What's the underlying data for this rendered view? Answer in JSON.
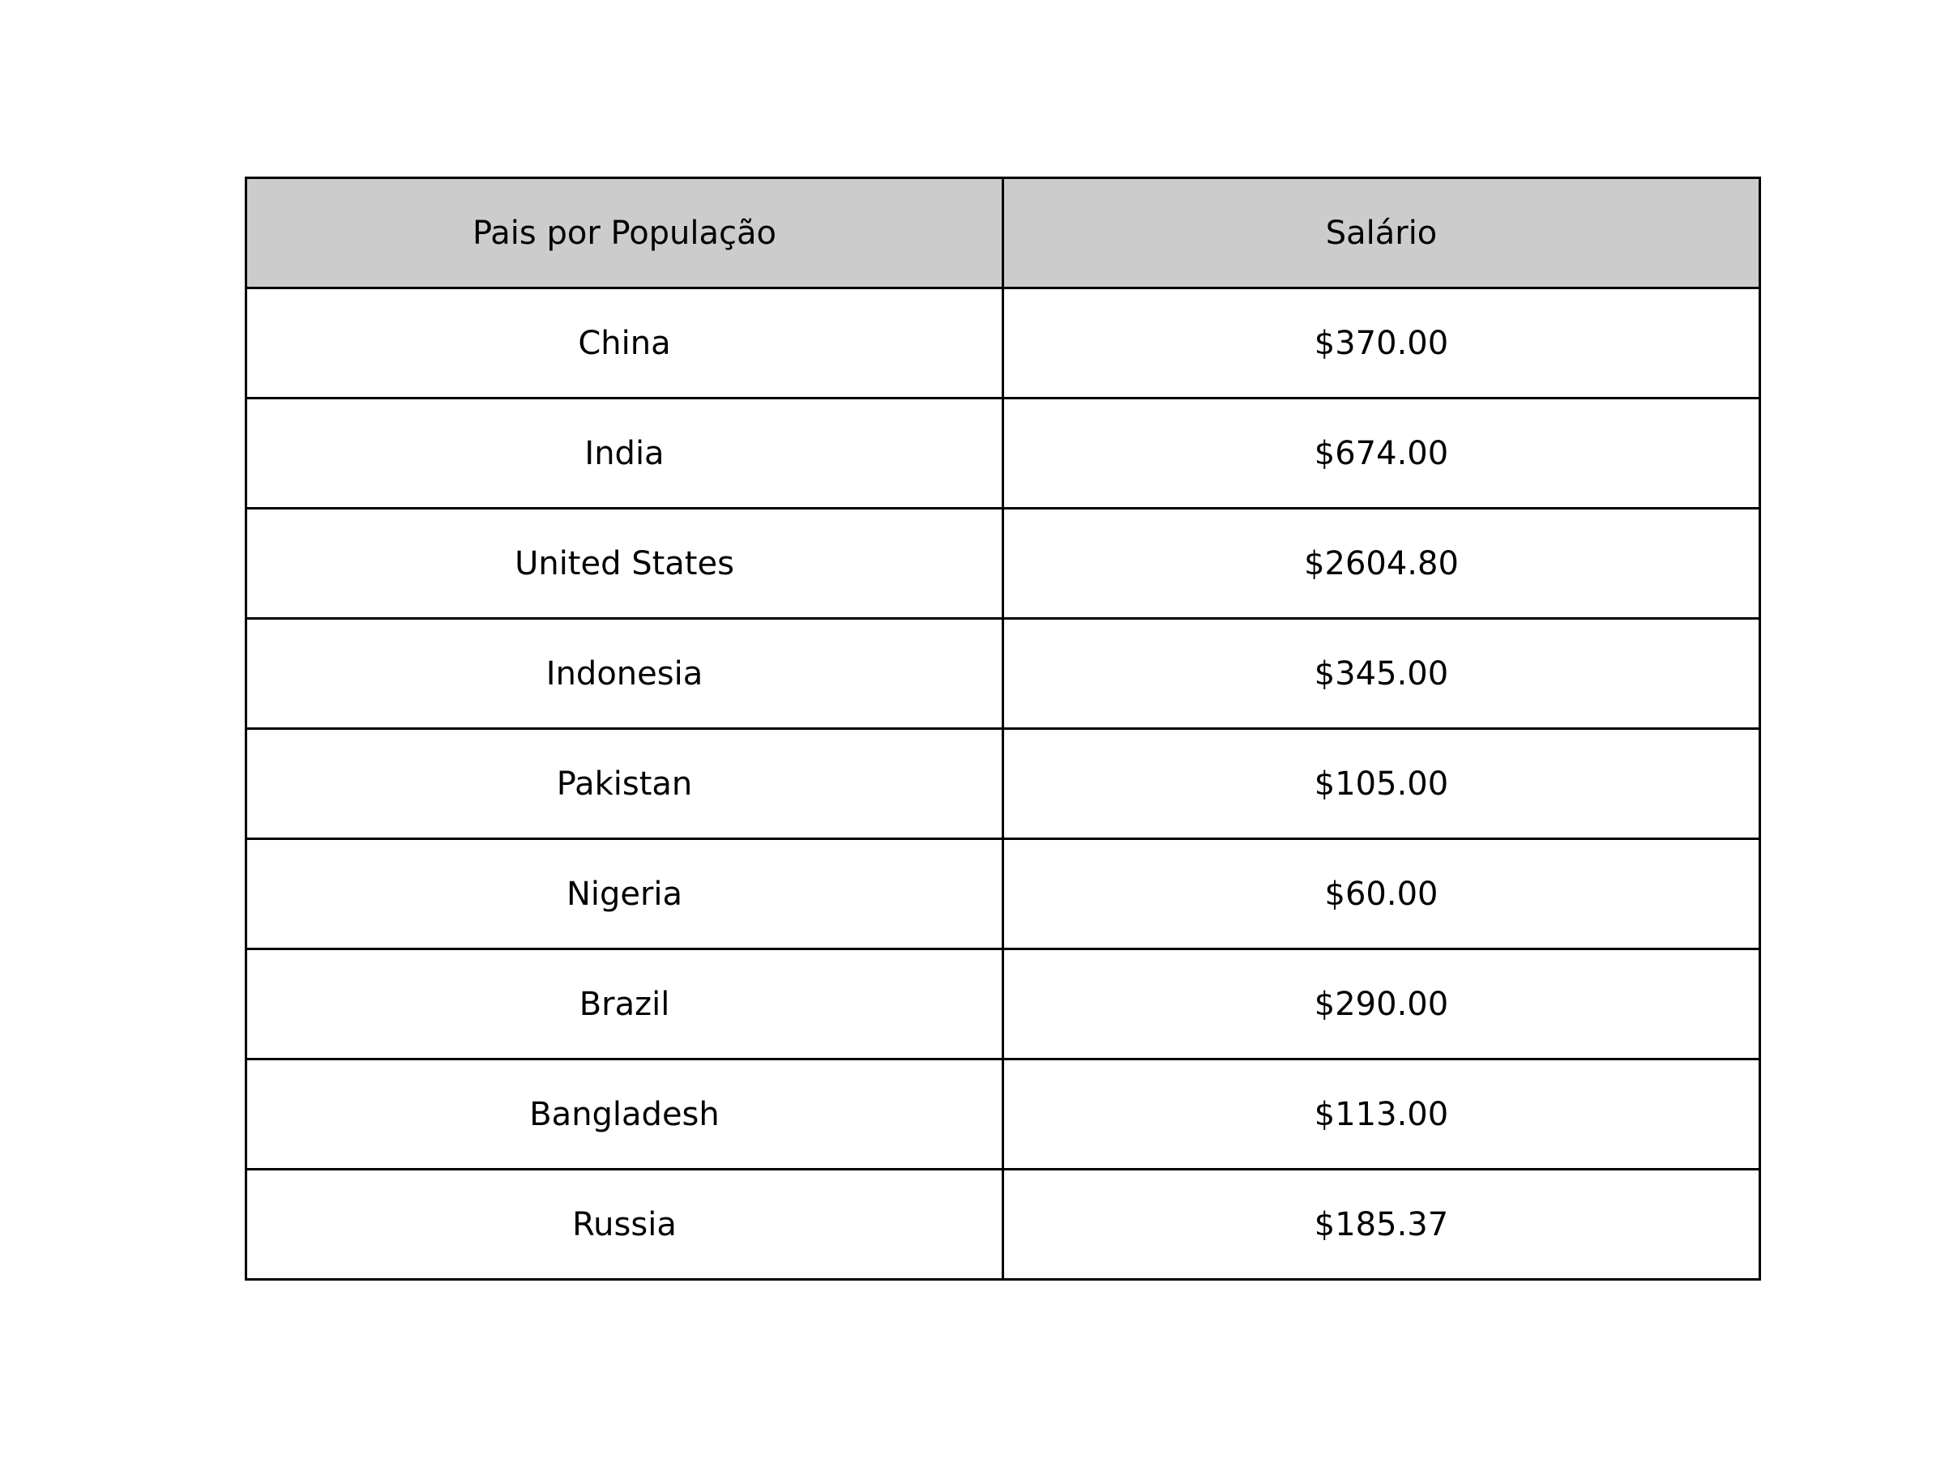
{
  "chart_data": {
    "type": "table",
    "columns": [
      "Pais por População",
      "Salário"
    ],
    "rows": [
      [
        "China",
        "$370.00"
      ],
      [
        "India",
        "$674.00"
      ],
      [
        "United States",
        "$2604.80"
      ],
      [
        "Indonesia",
        "$345.00"
      ],
      [
        "Pakistan",
        "$105.00"
      ],
      [
        "Nigeria",
        "$60.00"
      ],
      [
        "Brazil",
        "$290.00"
      ],
      [
        "Bangladesh",
        "$113.00"
      ],
      [
        "Russia",
        "$185.37"
      ]
    ],
    "colors": {
      "header_background": "#cccccc",
      "cell_background": "#ffffff",
      "border": "#000000",
      "text": "#000000"
    }
  }
}
